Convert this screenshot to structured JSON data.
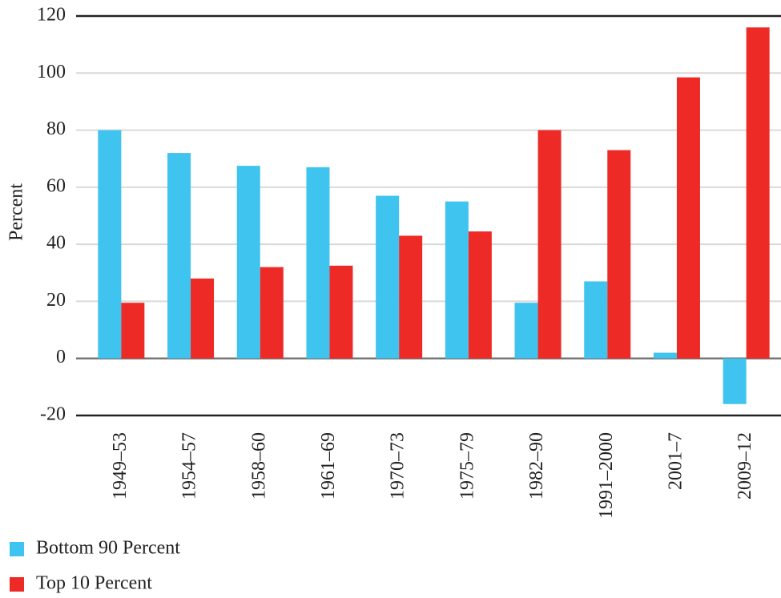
{
  "chart_data": {
    "type": "bar",
    "y_label": "Percent",
    "categories": [
      "1949–53",
      "1954–57",
      "1958–60",
      "1961–69",
      "1970–73",
      "1975–79",
      "1982–90",
      "1991–2000",
      "2001–7",
      "2009–12"
    ],
    "series": [
      {
        "name": "Bottom 90 Percent",
        "color": "#3ec4ef",
        "values": [
          80,
          72,
          67.5,
          67,
          57,
          55,
          19.5,
          27,
          2,
          -16
        ]
      },
      {
        "name": "Top 10 Percent",
        "color": "#ee2a27",
        "values": [
          19.5,
          28,
          32,
          32.5,
          43,
          44.5,
          80,
          73,
          98.5,
          116
        ]
      }
    ],
    "ylim": [
      -20,
      120
    ],
    "yticks": [
      -20,
      0,
      20,
      40,
      60,
      80,
      100,
      120
    ],
    "grid": true
  }
}
